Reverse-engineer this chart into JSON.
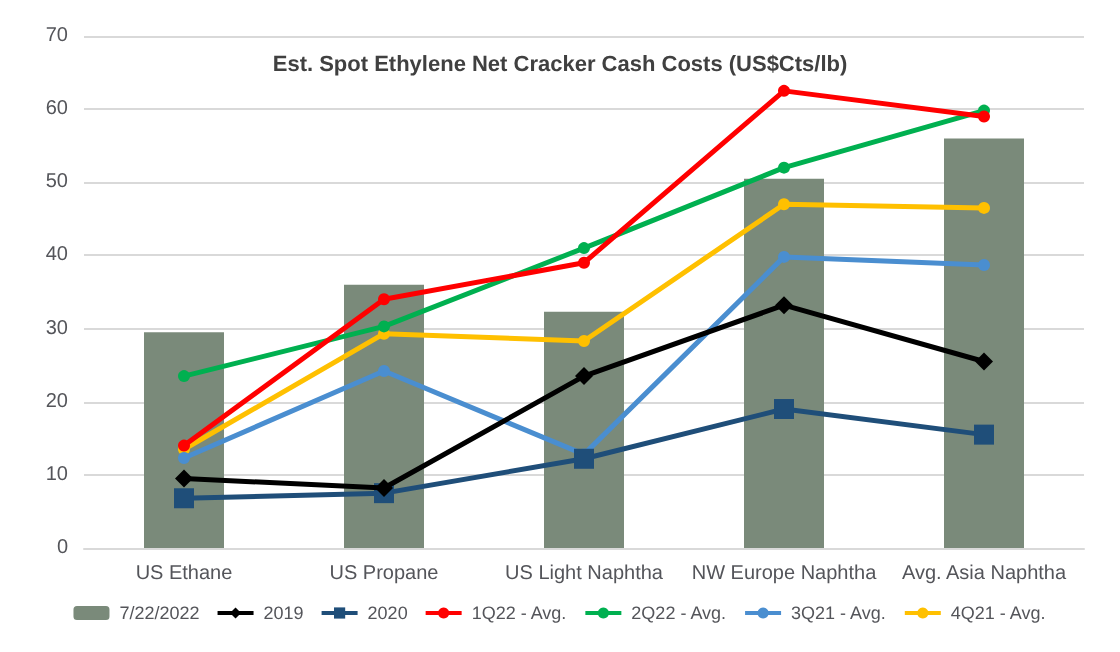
{
  "chart_data": {
    "type": "line",
    "title": "Est. Spot Ethylene Net Cracker Cash Costs (US$Cts/lb)",
    "categories": [
      "US Ethane",
      "US Propane",
      "US Light Naphtha",
      "NW Europe Naphtha",
      "Avg. Asia Naphtha"
    ],
    "ylim": [
      0,
      70
    ],
    "yticks": [
      0,
      10,
      20,
      30,
      40,
      50,
      60,
      70
    ],
    "grid": "y",
    "legend": "bottom",
    "series": [
      {
        "name": "7/22/2022",
        "type": "bar",
        "color": "#7a8a7a",
        "values": [
          29.5,
          36,
          32.3,
          50.5,
          56
        ]
      },
      {
        "name": "2019",
        "color": "#000000",
        "marker": "diamond",
        "values": [
          9.5,
          8.2,
          23.5,
          33.2,
          25.5
        ]
      },
      {
        "name": "2020",
        "color": "#1f4e79",
        "marker": "square",
        "values": [
          6.8,
          7.5,
          12.2,
          19,
          15.5
        ]
      },
      {
        "name": "1Q22 - Avg.",
        "color": "#ff0000",
        "marker": "circle",
        "values": [
          14,
          34,
          39,
          62.5,
          59
        ]
      },
      {
        "name": "2Q22 - Avg.",
        "color": "#00b050",
        "marker": "circle",
        "values": [
          23.5,
          30.3,
          41,
          52,
          59.8
        ]
      },
      {
        "name": "3Q21 - Avg.",
        "color": "#4a8ed0",
        "marker": "circle",
        "values": [
          12.3,
          24.2,
          12.8,
          39.8,
          38.7
        ]
      },
      {
        "name": "4Q21 - Avg.",
        "color": "#ffc000",
        "marker": "circle",
        "values": [
          13.5,
          29.3,
          28.3,
          47,
          46.5
        ]
      }
    ]
  }
}
